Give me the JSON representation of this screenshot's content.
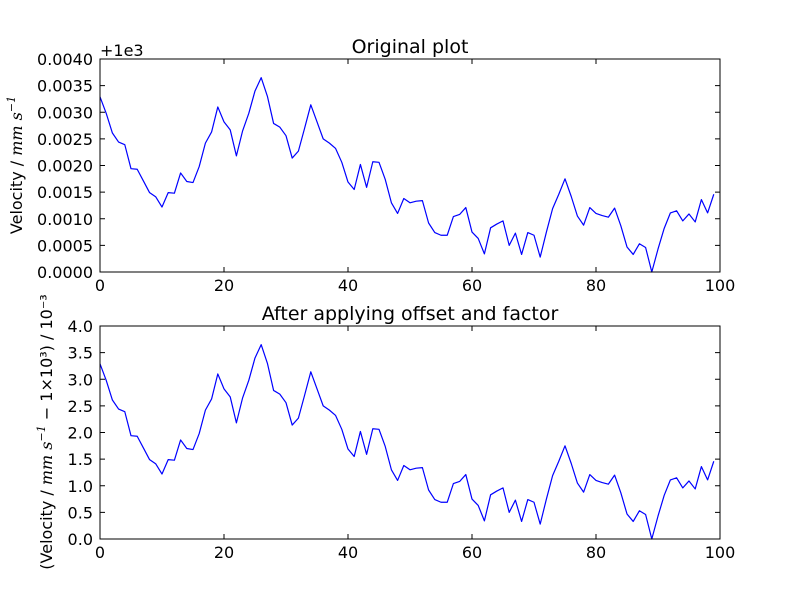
{
  "chart_data": [
    {
      "type": "line",
      "title": "Original plot",
      "ylabel": {
        "prefix": "Velocity / ",
        "unit_main": "mm s",
        "unit_exp": "−1",
        "suffix": ""
      },
      "offset_text": "+1e3",
      "xlim": [
        0,
        100
      ],
      "ylim": [
        0,
        0.004
      ],
      "xticks": [
        0,
        20,
        40,
        60,
        80,
        100
      ],
      "xtick_labels": [
        "0",
        "20",
        "40",
        "60",
        "80",
        "100"
      ],
      "yticks": [
        0,
        0.0005,
        0.001,
        0.0015,
        0.002,
        0.0025,
        0.003,
        0.0035,
        0.004
      ],
      "ytick_labels": [
        "0.0000",
        "0.0005",
        "0.0010",
        "0.0015",
        "0.0020",
        "0.0025",
        "0.0030",
        "0.0035",
        "0.0040"
      ],
      "grid": false,
      "color": "#0000ff",
      "x": [
        0,
        1,
        2,
        3,
        4,
        5,
        6,
        7,
        8,
        9,
        10,
        11,
        12,
        13,
        14,
        15,
        16,
        17,
        18,
        19,
        20,
        21,
        22,
        23,
        24,
        25,
        26,
        27,
        28,
        29,
        30,
        31,
        32,
        33,
        34,
        35,
        36,
        37,
        38,
        39,
        40,
        41,
        42,
        43,
        44,
        45,
        46,
        47,
        48,
        49,
        50,
        51,
        52,
        53,
        54,
        55,
        56,
        57,
        58,
        59,
        60,
        61,
        62,
        63,
        64,
        65,
        66,
        67,
        68,
        69,
        70,
        71,
        72,
        73,
        74,
        75,
        76,
        77,
        78,
        79,
        80,
        81,
        82,
        83,
        84,
        85,
        86,
        87,
        88,
        89,
        90,
        91,
        92,
        93,
        94,
        95,
        96,
        97,
        98,
        99
      ],
      "y": [
        0.00329,
        0.00298,
        0.00261,
        0.00244,
        0.00239,
        0.00194,
        0.00193,
        0.00171,
        0.00149,
        0.00141,
        0.00122,
        0.00149,
        0.00148,
        0.00186,
        0.0017,
        0.00168,
        0.00198,
        0.00242,
        0.00263,
        0.0031,
        0.00282,
        0.00267,
        0.00218,
        0.00265,
        0.00298,
        0.0034,
        0.00365,
        0.0033,
        0.00279,
        0.00272,
        0.00256,
        0.00214,
        0.00227,
        0.0027,
        0.00314,
        0.00282,
        0.0025,
        0.00242,
        0.00232,
        0.00206,
        0.00169,
        0.00155,
        0.00202,
        0.00159,
        0.00207,
        0.00206,
        0.00174,
        0.0013,
        0.0011,
        0.00138,
        0.0013,
        0.00133,
        0.00134,
        0.00092,
        0.00074,
        0.00069,
        0.00069,
        0.00104,
        0.00108,
        0.00121,
        0.00075,
        0.00063,
        0.00034,
        0.00083,
        0.0009,
        0.00096,
        0.0005,
        0.00073,
        0.00033,
        0.00074,
        0.00069,
        0.00028,
        0.00075,
        0.00119,
        0.00146,
        0.00175,
        0.00142,
        0.00105,
        0.00088,
        0.00121,
        0.0011,
        0.00106,
        0.00103,
        0.0012,
        0.00087,
        0.00047,
        0.00033,
        0.00053,
        0.00046,
        0.0,
        0.00043,
        0.00082,
        0.00111,
        0.00115,
        0.00096,
        0.00109,
        0.00094,
        0.00136,
        0.00111,
        0.00146
      ]
    },
    {
      "type": "line",
      "title": "After applying offset and factor",
      "ylabel": {
        "prefix": "(Velocity / ",
        "unit_main": "mm s",
        "unit_exp": "−1",
        "suffix": " − 1×10³) / 10⁻³"
      },
      "offset_text": "",
      "xlim": [
        0,
        100
      ],
      "ylim": [
        0,
        4
      ],
      "xticks": [
        0,
        20,
        40,
        60,
        80,
        100
      ],
      "xtick_labels": [
        "0",
        "20",
        "40",
        "60",
        "80",
        "100"
      ],
      "yticks": [
        0,
        0.5,
        1,
        1.5,
        2,
        2.5,
        3,
        3.5,
        4
      ],
      "ytick_labels": [
        "0.0",
        "0.5",
        "1.0",
        "1.5",
        "2.0",
        "2.5",
        "3.0",
        "3.5",
        "4.0"
      ],
      "grid": false,
      "color": "#0000ff",
      "x": [
        0,
        1,
        2,
        3,
        4,
        5,
        6,
        7,
        8,
        9,
        10,
        11,
        12,
        13,
        14,
        15,
        16,
        17,
        18,
        19,
        20,
        21,
        22,
        23,
        24,
        25,
        26,
        27,
        28,
        29,
        30,
        31,
        32,
        33,
        34,
        35,
        36,
        37,
        38,
        39,
        40,
        41,
        42,
        43,
        44,
        45,
        46,
        47,
        48,
        49,
        50,
        51,
        52,
        53,
        54,
        55,
        56,
        57,
        58,
        59,
        60,
        61,
        62,
        63,
        64,
        65,
        66,
        67,
        68,
        69,
        70,
        71,
        72,
        73,
        74,
        75,
        76,
        77,
        78,
        79,
        80,
        81,
        82,
        83,
        84,
        85,
        86,
        87,
        88,
        89,
        90,
        91,
        92,
        93,
        94,
        95,
        96,
        97,
        98,
        99
      ],
      "y": [
        3.29,
        2.98,
        2.61,
        2.44,
        2.39,
        1.94,
        1.93,
        1.71,
        1.49,
        1.41,
        1.22,
        1.49,
        1.48,
        1.86,
        1.7,
        1.68,
        1.98,
        2.42,
        2.63,
        3.1,
        2.82,
        2.67,
        2.18,
        2.65,
        2.98,
        3.4,
        3.65,
        3.3,
        2.79,
        2.72,
        2.56,
        2.14,
        2.27,
        2.7,
        3.14,
        2.82,
        2.5,
        2.42,
        2.32,
        2.06,
        1.69,
        1.55,
        2.02,
        1.59,
        2.07,
        2.06,
        1.74,
        1.3,
        1.1,
        1.38,
        1.3,
        1.33,
        1.34,
        0.92,
        0.74,
        0.69,
        0.69,
        1.04,
        1.08,
        1.21,
        0.75,
        0.63,
        0.34,
        0.83,
        0.9,
        0.96,
        0.5,
        0.73,
        0.33,
        0.74,
        0.69,
        0.28,
        0.75,
        1.19,
        1.46,
        1.75,
        1.42,
        1.05,
        0.88,
        1.21,
        1.1,
        1.06,
        1.03,
        1.2,
        0.87,
        0.47,
        0.33,
        0.53,
        0.46,
        0.0,
        0.43,
        0.82,
        1.11,
        1.15,
        0.96,
        1.09,
        0.94,
        1.36,
        1.11,
        1.46
      ]
    }
  ]
}
